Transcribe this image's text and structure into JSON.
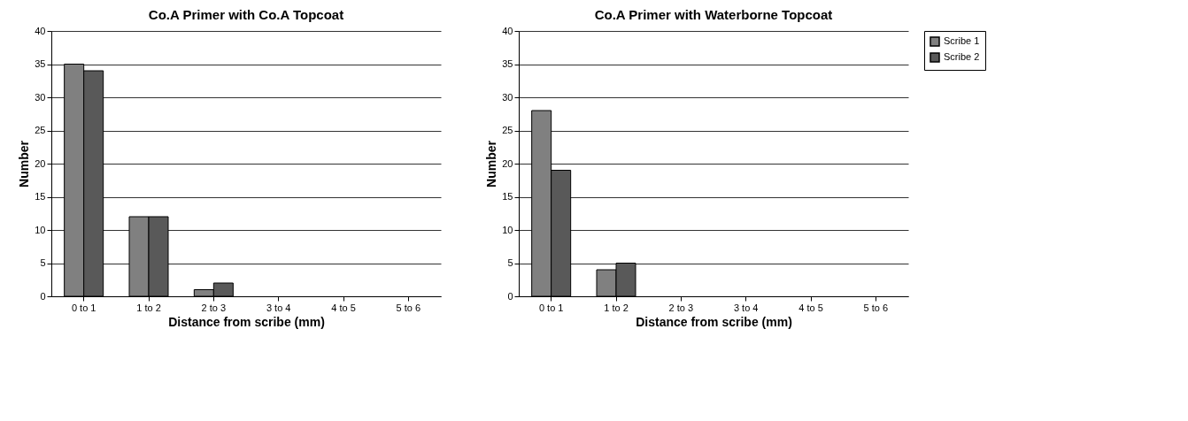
{
  "chart_data": [
    {
      "type": "bar",
      "title": "Co.A Primer with Co.A Topcoat",
      "xlabel": "Distance from scribe (mm)",
      "ylabel": "Number",
      "categories": [
        "0 to 1",
        "1 to 2",
        "2 to 3",
        "3 to 4",
        "4 to 5",
        "5 to 6"
      ],
      "series": [
        {
          "color": "#808080",
          "values": [
            35,
            12,
            1,
            0,
            0,
            0
          ]
        },
        {
          "color": "#595959",
          "values": [
            34,
            12,
            2,
            0,
            0,
            0
          ]
        }
      ],
      "ylim": [
        0,
        40
      ],
      "yticks": [
        0,
        5,
        10,
        15,
        20,
        25,
        30,
        35,
        40
      ],
      "grid": "y",
      "legend": false
    },
    {
      "type": "bar",
      "title": "Co.A Primer with Waterborne Topcoat",
      "xlabel": "Distance from scribe (mm)",
      "ylabel": "Number",
      "categories": [
        "0 to 1",
        "1 to 2",
        "2 to 3",
        "3 to 4",
        "4 to 5",
        "5 to 6"
      ],
      "series": [
        {
          "name": "Scribe 1",
          "color": "#808080",
          "values": [
            28,
            4,
            0,
            0,
            0,
            0
          ]
        },
        {
          "name": "Scribe 2",
          "color": "#595959",
          "values": [
            19,
            5,
            0,
            0,
            0,
            0
          ]
        }
      ],
      "ylim": [
        0,
        40
      ],
      "yticks": [
        0,
        5,
        10,
        15,
        20,
        25,
        30,
        35,
        40
      ],
      "grid": "y",
      "legend": "right"
    }
  ]
}
